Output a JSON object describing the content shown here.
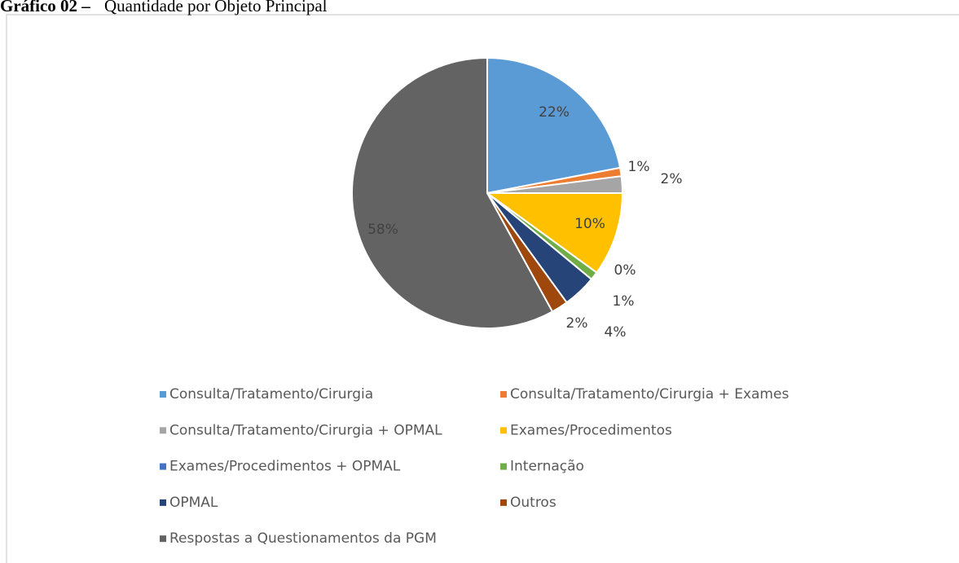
{
  "chart_data": {
    "type": "pie",
    "title": "Gráfico 02 –",
    "subtitle": "Quantidade por Objeto Principal",
    "categories": [
      "Consulta/Tratamento/Cirurgia",
      "Consulta/Tratamento/Cirurgia + Exames",
      "Consulta/Tratamento/Cirurgia + OPMAL",
      "Exames/Procedimentos",
      "Exames/Procedimentos + OPMAL",
      "Internação",
      "OPMAL",
      "Outros",
      "Respostas a Questionamentos da PGM"
    ],
    "values": [
      22,
      1,
      2,
      10,
      0,
      1,
      4,
      2,
      58
    ],
    "value_labels": [
      "22%",
      "1%",
      "2%",
      "10%",
      "0%",
      "1%",
      "4%",
      "2%",
      "58%"
    ],
    "colors": [
      "#5b9bd5",
      "#ed7d31",
      "#a5a5a5",
      "#ffc000",
      "#4472c4",
      "#70ad47",
      "#264478",
      "#9e480e",
      "#636363"
    ],
    "legend": "bottom"
  }
}
